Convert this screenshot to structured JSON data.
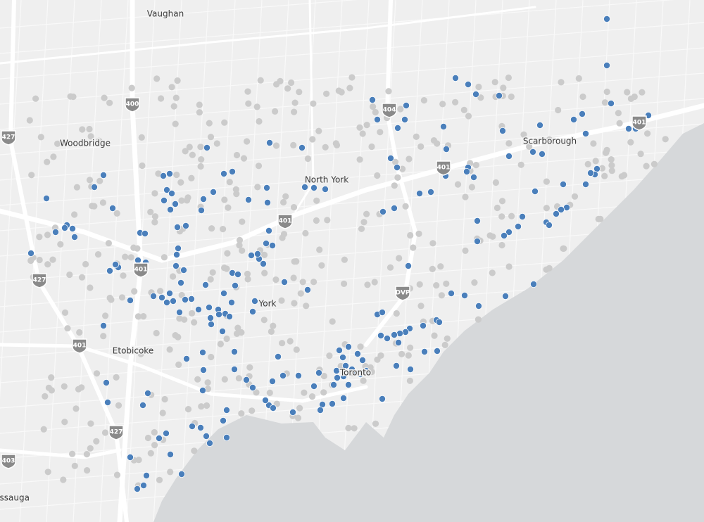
{
  "places": [
    "Vaughan",
    "Woodbridge",
    "North York",
    "Scarborough",
    "York",
    "Etobicoke",
    "Toronto",
    "Mississauga"
  ],
  "highway_shields": [
    "400",
    "427",
    "404",
    "401",
    "401",
    "401",
    "401",
    "427",
    "DVP",
    "401",
    "427",
    "403"
  ]
}
